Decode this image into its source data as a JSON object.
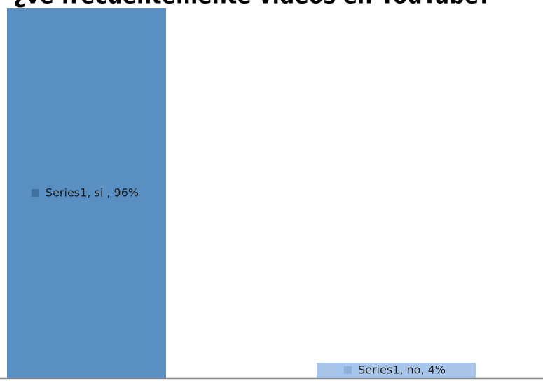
{
  "chart_data": {
    "type": "bar",
    "title": "¿ve frecuentemente videos en YouTube?",
    "categories": [
      "si",
      "no"
    ],
    "values": [
      96,
      4
    ],
    "value_labels": [
      "Series1, si , 96%",
      "Series1, no, 4%"
    ],
    "colors": [
      "#5a8fc3",
      "#a7c4ea"
    ],
    "ylim": [
      0,
      100
    ]
  }
}
